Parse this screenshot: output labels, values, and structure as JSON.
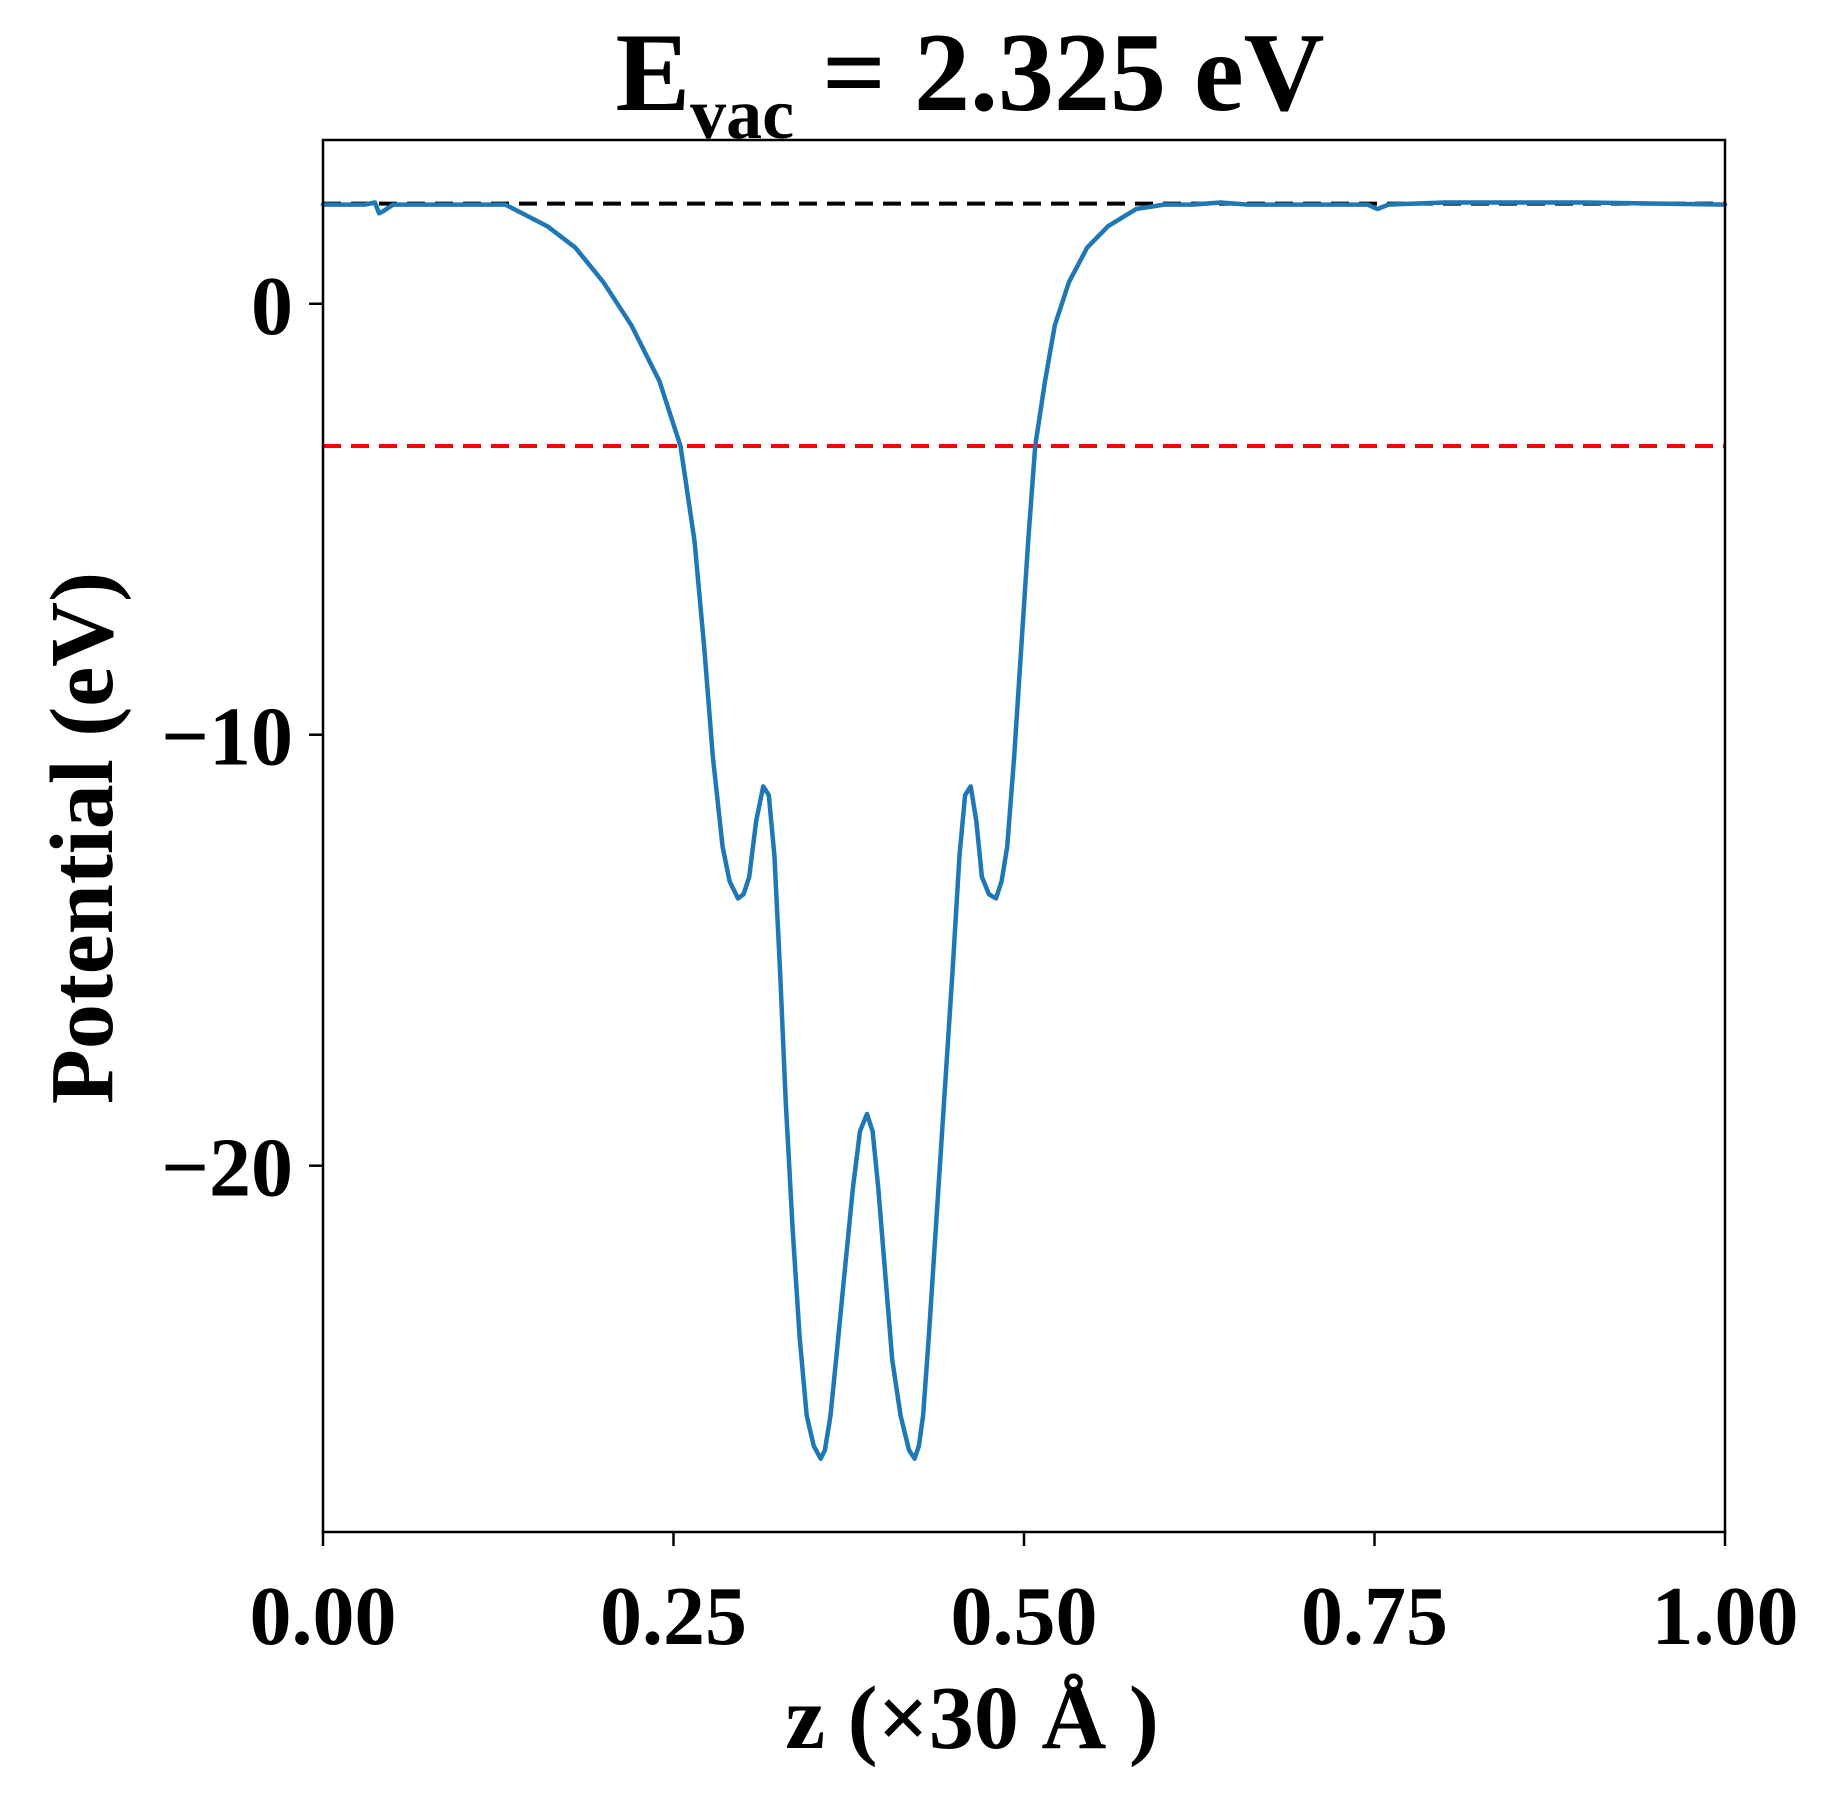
{
  "chart_data": {
    "type": "line",
    "title": {
      "main": "E",
      "subscript": "vac",
      "rest": " = 2.325 eV"
    },
    "xlabel": "z (×30 Å )",
    "ylabel": "Potential (eV)",
    "xlim": [
      0,
      1
    ],
    "ylim": [
      -28.5,
      3.8
    ],
    "xticks": [
      {
        "value": 0.0,
        "label": "0.00"
      },
      {
        "value": 0.25,
        "label": "0.25"
      },
      {
        "value": 0.5,
        "label": "0.50"
      },
      {
        "value": 0.75,
        "label": "0.75"
      },
      {
        "value": 1.0,
        "label": "1.00"
      }
    ],
    "yticks": [
      {
        "value": 0,
        "label": "0"
      },
      {
        "value": -10,
        "label": "−10"
      },
      {
        "value": -20,
        "label": "−20"
      }
    ],
    "grid": false,
    "reference_lines": [
      {
        "y": 2.325,
        "style": "dashed",
        "color": "#000000",
        "x_range": [
          0,
          1
        ]
      },
      {
        "y": -3.3,
        "style": "dashed",
        "color": "#ff0000",
        "x_range": [
          0,
          1
        ]
      }
    ],
    "series": [
      {
        "color": "#1f77b4",
        "x": [
          0.0,
          0.03,
          0.037,
          0.04,
          0.043,
          0.05,
          0.08,
          0.1,
          0.13,
          0.16,
          0.18,
          0.2,
          0.22,
          0.24,
          0.255,
          0.265,
          0.272,
          0.278,
          0.285,
          0.29,
          0.296,
          0.3,
          0.304,
          0.309,
          0.314,
          0.318,
          0.322,
          0.326,
          0.33,
          0.335,
          0.34,
          0.345,
          0.35,
          0.355,
          0.358,
          0.362,
          0.366,
          0.372,
          0.378,
          0.383,
          0.388,
          0.392,
          0.396,
          0.401,
          0.406,
          0.412,
          0.418,
          0.422,
          0.425,
          0.428,
          0.432,
          0.437,
          0.443,
          0.449,
          0.454,
          0.458,
          0.462,
          0.466,
          0.47,
          0.475,
          0.48,
          0.484,
          0.488,
          0.493,
          0.498,
          0.503,
          0.508,
          0.515,
          0.522,
          0.532,
          0.545,
          0.56,
          0.58,
          0.6,
          0.62,
          0.64,
          0.66,
          0.7,
          0.745,
          0.752,
          0.76,
          0.8,
          0.9,
          1.0
        ],
        "y": [
          2.3,
          2.3,
          2.35,
          2.1,
          2.15,
          2.3,
          2.3,
          2.3,
          2.3,
          1.8,
          1.3,
          0.5,
          -0.5,
          -1.8,
          -3.3,
          -5.5,
          -8.0,
          -10.5,
          -12.6,
          -13.4,
          -13.8,
          -13.7,
          -13.3,
          -12.0,
          -11.2,
          -11.4,
          -12.8,
          -15.5,
          -18.5,
          -21.5,
          -24.0,
          -25.8,
          -26.5,
          -26.8,
          -26.6,
          -25.8,
          -24.5,
          -22.5,
          -20.5,
          -19.2,
          -18.8,
          -19.2,
          -20.5,
          -22.5,
          -24.5,
          -25.8,
          -26.6,
          -26.8,
          -26.5,
          -25.8,
          -24.0,
          -21.5,
          -18.5,
          -15.5,
          -12.8,
          -11.4,
          -11.2,
          -12.0,
          -13.3,
          -13.7,
          -13.8,
          -13.4,
          -12.6,
          -10.5,
          -8.0,
          -5.5,
          -3.3,
          -1.8,
          -0.5,
          0.5,
          1.3,
          1.8,
          2.2,
          2.3,
          2.3,
          2.35,
          2.3,
          2.3,
          2.3,
          2.2,
          2.3,
          2.35,
          2.35,
          2.3
        ]
      }
    ]
  }
}
